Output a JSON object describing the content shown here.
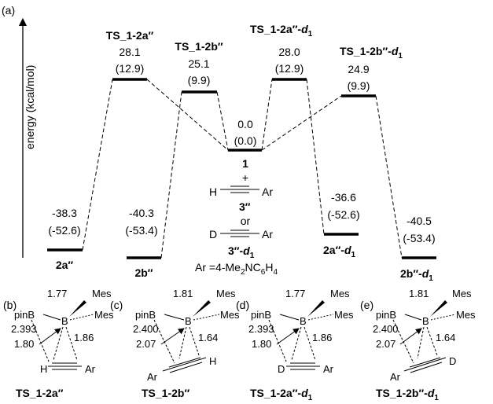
{
  "figure": {
    "panel_a": {
      "tag": "(a)",
      "y_axis_label": "energy (kcal/mol)",
      "levels": [
        {
          "id": "2a-pp",
          "label": "2a″",
          "line1": "-38.3",
          "line2": "(-52.6)"
        },
        {
          "id": "ts-2a",
          "label": "TS_1-2a″",
          "line1": "28.1",
          "line2": "(12.9)"
        },
        {
          "id": "2b-pp",
          "label": "2b″",
          "line1": "-40.3",
          "line2": "(-53.4)"
        },
        {
          "id": "ts-2b",
          "label": "TS_1-2b″",
          "line1": "25.1",
          "line2": "(9.9)"
        },
        {
          "id": "reactant",
          "label": "1",
          "line1": "0.0",
          "line2": "(0.0)"
        },
        {
          "id": "ts-2a-d1",
          "label": "TS_1-2a″-d1",
          "line1": "28.0",
          "line2": "(12.9)"
        },
        {
          "id": "2a-d1",
          "label": "2a″-d1",
          "line1": "-36.6",
          "line2": "(-52.6)"
        },
        {
          "id": "ts-2b-d1",
          "label": "TS_1-2b″-d1",
          "line1": "24.9",
          "line2": "(9.9)"
        },
        {
          "id": "2b-d1",
          "label": "2b″-d1",
          "line1": "-40.5",
          "line2": "(-53.4)"
        }
      ],
      "reactant_block": {
        "plus": "+",
        "h": "H",
        "ar": "Ar",
        "alkyne_label": "3″",
        "or": "or",
        "d": "D",
        "alkyne_d_label": "3″-d1",
        "ar_def": "Ar =4-Me2NC6H4"
      }
    },
    "panels": [
      {
        "tag": "(b)",
        "bb": "1.77",
        "d1": "2.393",
        "d2": "1.80",
        "d3": "1.86",
        "left_atom": "H",
        "right_atom": "Ar",
        "title": "TS_1-2a″"
      },
      {
        "tag": "(c)",
        "bb": "1.81",
        "d1": "2.400",
        "d2": "2.07",
        "d3": "1.64",
        "left_atom": "Ar",
        "right_atom": "H",
        "title": "TS_1-2b″"
      },
      {
        "tag": "(d)",
        "bb": "1.77",
        "d1": "2.393",
        "d2": "1.80",
        "d3": "1.86",
        "left_atom": "D",
        "right_atom": "Ar",
        "title": "TS_1-2a″-d1"
      },
      {
        "tag": "(e)",
        "bb": "1.81",
        "d1": "2.400",
        "d2": "2.07",
        "d3": "1.64",
        "left_atom": "Ar",
        "right_atom": "D",
        "title": "TS_1-2b″-d1"
      }
    ],
    "atoms": {
      "pinb": "pinB",
      "b": "B",
      "mes": "Mes"
    }
  }
}
